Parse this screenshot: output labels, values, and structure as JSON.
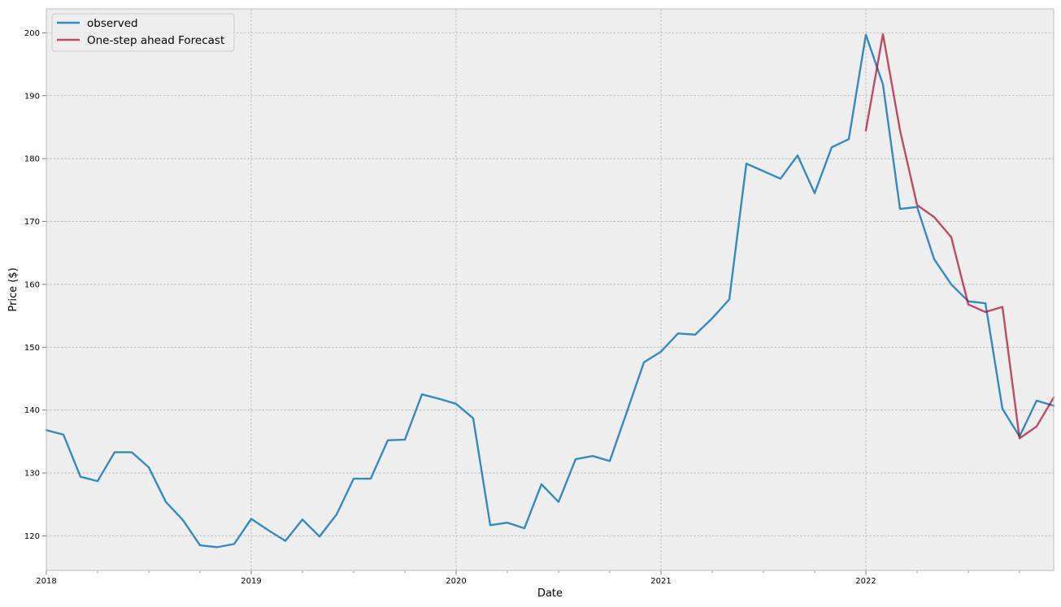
{
  "chart_data": {
    "type": "line",
    "title": "",
    "xlabel": "Date",
    "ylabel": "Price ($)",
    "xlim": [
      "2018-01",
      "2022-12"
    ],
    "ylim": [
      114.5,
      203.8
    ],
    "x_ticks": [
      "2018",
      "2019",
      "2020",
      "2021",
      "2022"
    ],
    "y_ticks": [
      120,
      130,
      140,
      150,
      160,
      170,
      180,
      190,
      200
    ],
    "grid": true,
    "legend_position": "top-left",
    "colors": {
      "background": "#eeeeee",
      "grid": "#b0b0b0"
    },
    "series": [
      {
        "name": "observed",
        "color": "#348abd",
        "x": [
          "2018-01",
          "2018-02",
          "2018-03",
          "2018-04",
          "2018-05",
          "2018-06",
          "2018-07",
          "2018-08",
          "2018-09",
          "2018-10",
          "2018-11",
          "2018-12",
          "2019-01",
          "2019-02",
          "2019-03",
          "2019-04",
          "2019-05",
          "2019-06",
          "2019-07",
          "2019-08",
          "2019-09",
          "2019-10",
          "2019-11",
          "2019-12",
          "2020-01",
          "2020-02",
          "2020-03",
          "2020-04",
          "2020-05",
          "2020-06",
          "2020-07",
          "2020-08",
          "2020-09",
          "2020-10",
          "2020-11",
          "2020-12",
          "2021-01",
          "2021-02",
          "2021-03",
          "2021-04",
          "2021-05",
          "2021-06",
          "2021-07",
          "2021-08",
          "2021-09",
          "2021-10",
          "2021-11",
          "2021-12",
          "2022-01",
          "2022-02",
          "2022-03",
          "2022-04",
          "2022-05",
          "2022-06",
          "2022-07",
          "2022-08",
          "2022-09",
          "2022-10",
          "2022-11",
          "2022-12"
        ],
        "values": [
          136.8,
          136.1,
          129.4,
          128.7,
          133.3,
          133.3,
          130.9,
          125.4,
          122.5,
          118.5,
          118.2,
          118.7,
          122.7,
          120.9,
          119.2,
          122.6,
          119.9,
          123.4,
          129.1,
          129.1,
          135.2,
          135.3,
          142.5,
          141.8,
          141.0,
          138.7,
          121.7,
          122.1,
          121.2,
          128.2,
          125.4,
          132.2,
          132.7,
          131.9,
          139.7,
          147.6,
          149.3,
          152.2,
          152.0,
          154.6,
          157.6,
          179.2,
          178.0,
          176.8,
          180.5,
          174.5,
          181.8,
          183.1,
          199.7,
          191.8,
          172.0,
          172.3,
          164.0,
          160.0,
          157.3,
          157.0,
          140.2,
          135.8,
          141.5,
          140.7
        ]
      },
      {
        "name": "One-step ahead Forecast",
        "color": "#a60628",
        "x": [
          "2022-01",
          "2022-02",
          "2022-03",
          "2022-04",
          "2022-05",
          "2022-06",
          "2022-07",
          "2022-08",
          "2022-09",
          "2022-10",
          "2022-11",
          "2022-12"
        ],
        "values": [
          184.5,
          199.8,
          184.5,
          172.6,
          170.7,
          167.5,
          156.8,
          155.6,
          156.4,
          135.5,
          137.4,
          142.0
        ]
      }
    ]
  }
}
